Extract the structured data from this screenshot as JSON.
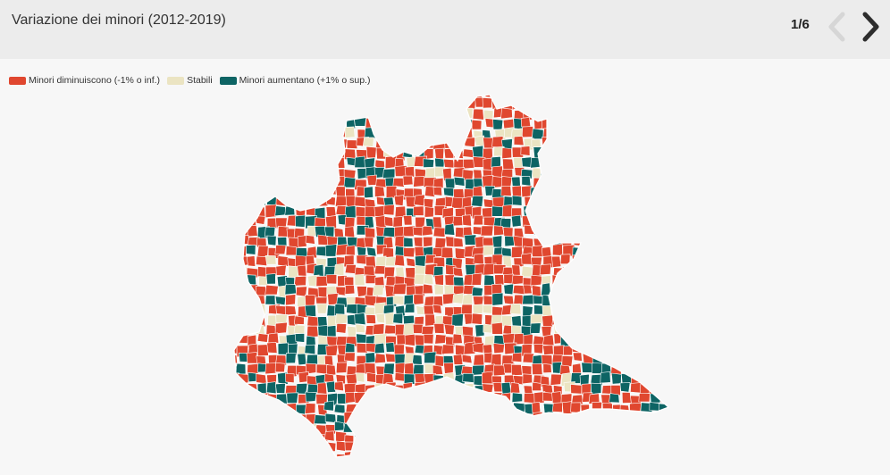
{
  "header": {
    "title": "Variazione dei minori (2012-2019)",
    "pager": "1/6",
    "prev_icon": "chevron-left-icon",
    "next_icon": "chevron-right-icon"
  },
  "legend": [
    {
      "label": "Minori diminuiscono (-1% o inf.)",
      "color": "#e0472f"
    },
    {
      "label": "Stabili",
      "color": "#ebe4c2"
    },
    {
      "label": "Minori aumentano (+1% o sup.)",
      "color": "#0d6464"
    }
  ],
  "colors": {
    "decrease": "#e0472f",
    "stable": "#ebe4c2",
    "increase": "#0d6464",
    "border": "#ffffff",
    "header_bg": "#ececec",
    "page_bg": "#f7f7f7"
  }
}
